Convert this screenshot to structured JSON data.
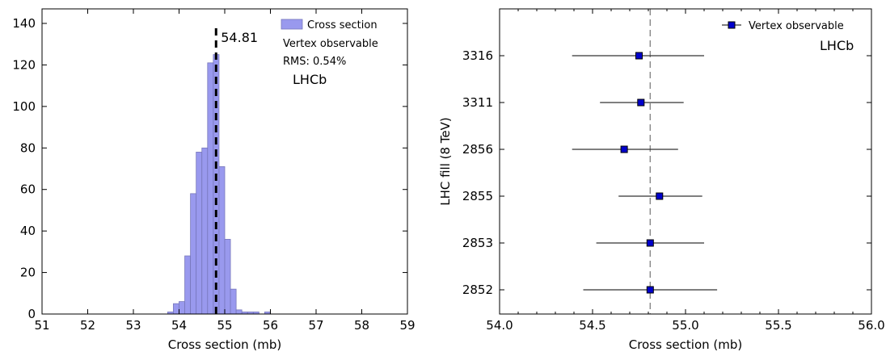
{
  "chart_data": [
    {
      "type": "bar",
      "xlabel": "Cross section (mb)",
      "ylabel": "",
      "xlim": [
        51,
        59
      ],
      "ylim": [
        0,
        147
      ],
      "xticks": [
        51,
        52,
        53,
        54,
        55,
        56,
        57,
        58,
        59
      ],
      "yticks": [
        0,
        20,
        40,
        60,
        80,
        100,
        120,
        140
      ],
      "bin_width": 0.125,
      "bins": [
        {
          "x": 53.75,
          "count": 1
        },
        {
          "x": 53.875,
          "count": 5
        },
        {
          "x": 54.0,
          "count": 6
        },
        {
          "x": 54.125,
          "count": 28
        },
        {
          "x": 54.25,
          "count": 58
        },
        {
          "x": 54.375,
          "count": 78
        },
        {
          "x": 54.5,
          "count": 80
        },
        {
          "x": 54.625,
          "count": 121
        },
        {
          "x": 54.75,
          "count": 125
        },
        {
          "x": 54.875,
          "count": 71
        },
        {
          "x": 55.0,
          "count": 36
        },
        {
          "x": 55.125,
          "count": 12
        },
        {
          "x": 55.25,
          "count": 2
        },
        {
          "x": 55.375,
          "count": 1
        },
        {
          "x": 55.5,
          "count": 1
        },
        {
          "x": 55.625,
          "count": 1
        },
        {
          "x": 55.875,
          "count": 1
        }
      ],
      "mean_line": 54.81,
      "mean_label": "54.81",
      "legend": [
        {
          "label": "Cross section",
          "color": "#9999ee"
        }
      ],
      "legend_position": "top-right",
      "annotations": [
        "Vertex observable",
        "RMS: 0.54%",
        "LHCb"
      ],
      "grid": false
    },
    {
      "type": "scatter",
      "xlabel": "Cross section (mb)",
      "ylabel": "LHC fill (8 TeV)",
      "xlim": [
        54.0,
        56.0
      ],
      "xticks": [
        "54.0",
        "54.5",
        "55.0",
        "55.5",
        "56.0"
      ],
      "categories": [
        "3316",
        "3311",
        "2856",
        "2855",
        "2853",
        "2852"
      ],
      "points": [
        {
          "fill": "3316",
          "x": 54.75,
          "xerr_low": 54.39,
          "xerr_high": 55.1
        },
        {
          "fill": "3311",
          "x": 54.76,
          "xerr_low": 54.54,
          "xerr_high": 54.99
        },
        {
          "fill": "2856",
          "x": 54.67,
          "xerr_low": 54.39,
          "xerr_high": 54.96
        },
        {
          "fill": "2855",
          "x": 54.86,
          "xerr_low": 54.64,
          "xerr_high": 55.09
        },
        {
          "fill": "2853",
          "x": 54.81,
          "xerr_low": 54.52,
          "xerr_high": 55.1
        },
        {
          "fill": "2852",
          "x": 54.81,
          "xerr_low": 54.45,
          "xerr_high": 55.17
        }
      ],
      "reference_line": 54.81,
      "legend": [
        {
          "label": "Vertex observable",
          "color": "#0000cc"
        }
      ],
      "legend_position": "top-right",
      "annotations": [
        "LHCb"
      ],
      "grid": false
    }
  ]
}
